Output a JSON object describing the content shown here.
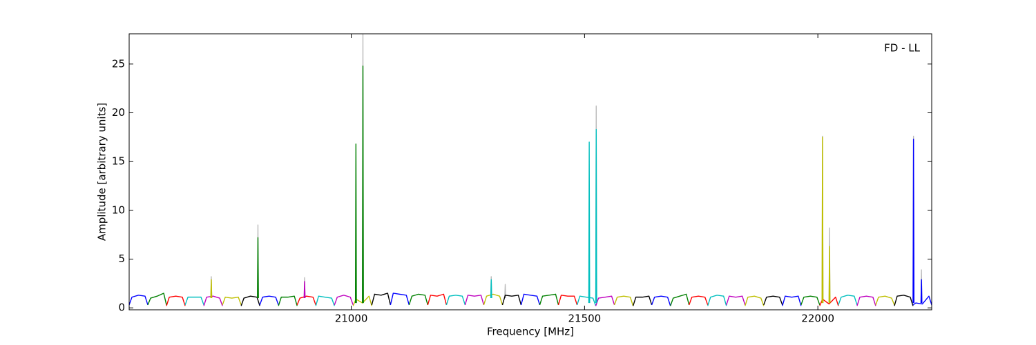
{
  "chart_data": {
    "type": "line",
    "annotation": "FD - LL",
    "xlabel": "Frequency [MHz]",
    "ylabel": "Amplitude [arbitrary units]",
    "xlim": [
      20524,
      22244
    ],
    "ylim": [
      -0.2,
      28.1
    ],
    "xticks": [
      21000,
      21500,
      22000
    ],
    "yticks": [
      0,
      5,
      10,
      15,
      20,
      25
    ],
    "series": [
      {
        "color": "#bbbbbb",
        "x": [
          20699,
          20700,
          20701,
          null,
          20799,
          20800,
          20801,
          null,
          20899,
          20900,
          20901,
          null,
          21024,
          21025,
          21026,
          null,
          21299,
          21300,
          21301,
          null,
          21329,
          21330,
          21331,
          null,
          21524,
          21525,
          21526,
          null,
          22009,
          22010,
          22011,
          null,
          22024,
          22025,
          22026,
          null,
          22204,
          22205,
          22206,
          null,
          22221,
          22222,
          22223
        ],
        "values": [
          1,
          3.2,
          1,
          null,
          1,
          8.5,
          1,
          null,
          1,
          3.1,
          1,
          null,
          0.5,
          28.1,
          0.5,
          null,
          1,
          3.2,
          1,
          null,
          1,
          2.4,
          1,
          null,
          0.5,
          20.7,
          0.5,
          null,
          0.5,
          17.6,
          0.5,
          null,
          0.5,
          8.2,
          0.5,
          null,
          0.5,
          17.6,
          0.5,
          null,
          0.5,
          3.9,
          0.5
        ]
      },
      {
        "color": "#0000ff",
        "x": [
          20524,
          20530,
          20544,
          20558,
          20564
        ],
        "values": [
          0.3,
          1.1,
          1.3,
          1.2,
          0.3
        ]
      },
      {
        "color": "#008000",
        "x": [
          20564,
          20570,
          20584,
          20598,
          20604
        ],
        "values": [
          0.3,
          1.0,
          1.2,
          1.5,
          0.3
        ]
      },
      {
        "color": "#ff0000",
        "x": [
          20604,
          20610,
          20624,
          20638,
          20644
        ],
        "values": [
          0.2,
          1.1,
          1.2,
          1.1,
          0.2
        ]
      },
      {
        "color": "#00bfbf",
        "x": [
          20644,
          20650,
          20664,
          20678,
          20684
        ],
        "values": [
          0.3,
          1.1,
          1.1,
          1.1,
          0.3
        ]
      },
      {
        "color": "#bf00bf",
        "x": [
          20684,
          20690,
          20704,
          20718,
          20724
        ],
        "values": [
          0.2,
          1.1,
          1.2,
          1.0,
          0.2
        ]
      },
      {
        "color": "#bfbf00",
        "x": [
          20724,
          20730,
          20744,
          20758,
          20764
        ],
        "values": [
          0.3,
          1.1,
          1.0,
          1.1,
          0.3
        ]
      },
      {
        "color": "#000000",
        "x": [
          20764,
          20770,
          20784,
          20798,
          20804
        ],
        "values": [
          0.2,
          1.0,
          1.2,
          1.1,
          0.2
        ]
      },
      {
        "color": "#0000ff",
        "x": [
          20804,
          20810,
          20824,
          20838,
          20844
        ],
        "values": [
          0.3,
          1.1,
          1.2,
          1.1,
          0.3
        ]
      },
      {
        "color": "#008000",
        "x": [
          20844,
          20850,
          20864,
          20878,
          20884
        ],
        "values": [
          0.2,
          1.1,
          1.1,
          1.2,
          0.2
        ]
      },
      {
        "color": "#ff0000",
        "x": [
          20884,
          20890,
          20904,
          20918,
          20924
        ],
        "values": [
          0.3,
          1.0,
          1.2,
          1.1,
          0.3
        ]
      },
      {
        "color": "#00bfbf",
        "x": [
          20924,
          20930,
          20944,
          20958,
          20964
        ],
        "values": [
          0.2,
          1.2,
          1.1,
          1.0,
          0.2
        ]
      },
      {
        "color": "#bf00bf",
        "x": [
          20964,
          20970,
          20984,
          20998,
          21004
        ],
        "values": [
          0.3,
          1.1,
          1.3,
          1.1,
          0.3
        ]
      },
      {
        "color": "#bfbf00",
        "x": [
          21004,
          21010,
          21024,
          21038,
          21044
        ],
        "values": [
          0.2,
          0.9,
          0.5,
          1.2,
          0.2
        ]
      },
      {
        "color": "#000000",
        "x": [
          21044,
          21050,
          21064,
          21078,
          21084
        ],
        "values": [
          0.3,
          1.4,
          1.3,
          1.5,
          0.3
        ]
      },
      {
        "color": "#0000ff",
        "x": [
          21084,
          21090,
          21104,
          21118,
          21124
        ],
        "values": [
          0.3,
          1.5,
          1.4,
          1.3,
          0.3
        ]
      },
      {
        "color": "#008000",
        "x": [
          21124,
          21130,
          21144,
          21158,
          21164
        ],
        "values": [
          0.3,
          1.2,
          1.4,
          1.3,
          0.3
        ]
      },
      {
        "color": "#ff0000",
        "x": [
          21164,
          21170,
          21184,
          21198,
          21204
        ],
        "values": [
          0.3,
          1.3,
          1.2,
          1.4,
          0.3
        ]
      },
      {
        "color": "#00bfbf",
        "x": [
          21204,
          21210,
          21224,
          21238,
          21244
        ],
        "values": [
          0.3,
          1.2,
          1.3,
          1.2,
          0.3
        ]
      },
      {
        "color": "#bf00bf",
        "x": [
          21244,
          21250,
          21264,
          21278,
          21284
        ],
        "values": [
          0.3,
          1.3,
          1.2,
          1.3,
          0.3
        ]
      },
      {
        "color": "#bfbf00",
        "x": [
          21284,
          21290,
          21304,
          21318,
          21324
        ],
        "values": [
          0.3,
          1.2,
          1.4,
          1.2,
          0.3
        ]
      },
      {
        "color": "#000000",
        "x": [
          21324,
          21330,
          21344,
          21358,
          21364
        ],
        "values": [
          0.3,
          1.3,
          1.2,
          1.3,
          0.3
        ]
      },
      {
        "color": "#0000ff",
        "x": [
          21364,
          21370,
          21384,
          21398,
          21404
        ],
        "values": [
          0.3,
          1.4,
          1.3,
          1.2,
          0.3
        ]
      },
      {
        "color": "#008000",
        "x": [
          21404,
          21410,
          21424,
          21438,
          21444
        ],
        "values": [
          0.3,
          1.2,
          1.3,
          1.4,
          0.3
        ]
      },
      {
        "color": "#ff0000",
        "x": [
          21444,
          21450,
          21464,
          21478,
          21484
        ],
        "values": [
          0.3,
          1.3,
          1.2,
          1.2,
          0.3
        ]
      },
      {
        "color": "#00bfbf",
        "x": [
          21484,
          21490,
          21504,
          21518,
          21524
        ],
        "values": [
          0.3,
          1.2,
          1.1,
          1.0,
          0.2
        ]
      },
      {
        "color": "#bf00bf",
        "x": [
          21524,
          21530,
          21544,
          21558,
          21564
        ],
        "values": [
          0.2,
          1.0,
          1.1,
          1.2,
          0.3
        ]
      },
      {
        "color": "#bfbf00",
        "x": [
          21564,
          21570,
          21584,
          21598,
          21604
        ],
        "values": [
          0.3,
          1.1,
          1.2,
          1.1,
          0.2
        ]
      },
      {
        "color": "#000000",
        "x": [
          21604,
          21610,
          21624,
          21638,
          21644
        ],
        "values": [
          0.2,
          1.1,
          1.1,
          1.2,
          0.3
        ]
      },
      {
        "color": "#0000ff",
        "x": [
          21644,
          21650,
          21664,
          21678,
          21684
        ],
        "values": [
          0.3,
          1.1,
          1.2,
          1.1,
          0.2
        ]
      },
      {
        "color": "#008000",
        "x": [
          21684,
          21690,
          21704,
          21718,
          21724
        ],
        "values": [
          0.2,
          1.0,
          1.2,
          1.4,
          0.3
        ]
      },
      {
        "color": "#ff0000",
        "x": [
          21724,
          21730,
          21744,
          21758,
          21764
        ],
        "values": [
          0.3,
          1.1,
          1.2,
          1.1,
          0.3
        ]
      },
      {
        "color": "#00bfbf",
        "x": [
          21764,
          21770,
          21784,
          21798,
          21804
        ],
        "values": [
          0.2,
          1.1,
          1.3,
          1.2,
          0.2
        ]
      },
      {
        "color": "#bf00bf",
        "x": [
          21804,
          21810,
          21824,
          21838,
          21844
        ],
        "values": [
          0.3,
          1.2,
          1.1,
          1.2,
          0.3
        ]
      },
      {
        "color": "#bfbf00",
        "x": [
          21844,
          21850,
          21864,
          21878,
          21884
        ],
        "values": [
          0.2,
          1.1,
          1.2,
          1.0,
          0.2
        ]
      },
      {
        "color": "#000000",
        "x": [
          21884,
          21890,
          21904,
          21918,
          21924
        ],
        "values": [
          0.3,
          1.1,
          1.2,
          1.1,
          0.3
        ]
      },
      {
        "color": "#0000ff",
        "x": [
          21924,
          21930,
          21944,
          21958,
          21964
        ],
        "values": [
          0.2,
          1.2,
          1.1,
          1.2,
          0.2
        ]
      },
      {
        "color": "#008000",
        "x": [
          21964,
          21970,
          21984,
          21998,
          22004
        ],
        "values": [
          0.3,
          1.1,
          1.2,
          1.1,
          0.3
        ]
      },
      {
        "color": "#ff0000",
        "x": [
          22004,
          22010,
          22024,
          22038,
          22044
        ],
        "values": [
          0.2,
          0.9,
          0.4,
          1.1,
          0.2
        ]
      },
      {
        "color": "#00bfbf",
        "x": [
          22044,
          22050,
          22064,
          22078,
          22084
        ],
        "values": [
          0.3,
          1.1,
          1.3,
          1.2,
          0.3
        ]
      },
      {
        "color": "#bf00bf",
        "x": [
          22084,
          22090,
          22104,
          22118,
          22124
        ],
        "values": [
          0.2,
          1.1,
          1.2,
          1.1,
          0.2
        ]
      },
      {
        "color": "#bfbf00",
        "x": [
          22124,
          22130,
          22144,
          22158,
          22164
        ],
        "values": [
          0.3,
          1.1,
          1.2,
          1.0,
          0.3
        ]
      },
      {
        "color": "#000000",
        "x": [
          22164,
          22170,
          22184,
          22198,
          22204
        ],
        "values": [
          0.2,
          1.2,
          1.3,
          1.1,
          0.2
        ]
      },
      {
        "color": "#0000ff",
        "x": [
          22204,
          22210,
          22224,
          22238,
          22244
        ],
        "values": [
          0.3,
          0.5,
          0.4,
          1.2,
          0.3
        ]
      },
      {
        "color": "#bfbf00",
        "x": [
          20699,
          20700,
          20701,
          null,
          22009,
          22010,
          22011,
          null,
          22024,
          22025,
          22026
        ],
        "values": [
          1,
          2.9,
          1,
          null,
          0.5,
          17.5,
          0.5,
          null,
          0.5,
          6.3,
          0.5
        ]
      },
      {
        "color": "#008000",
        "x": [
          20799,
          20800,
          20801,
          null,
          21009,
          21010,
          21011,
          null,
          21024,
          21025,
          21026
        ],
        "values": [
          1,
          7.2,
          1,
          null,
          0.5,
          16.8,
          0.5,
          null,
          0.5,
          24.8,
          0.5
        ]
      },
      {
        "color": "#bf00bf",
        "x": [
          20899,
          20900,
          20901
        ],
        "values": [
          1,
          2.7,
          1
        ]
      },
      {
        "color": "#00bfbf",
        "x": [
          21299,
          21300,
          21301,
          null,
          21509,
          21510,
          21511,
          null,
          21524,
          21525,
          21526
        ],
        "values": [
          1,
          2.9,
          1,
          null,
          0.5,
          17.0,
          0.5,
          null,
          0.5,
          18.3,
          0.5
        ]
      },
      {
        "color": "#0000ff",
        "x": [
          22204,
          22205,
          22206,
          null,
          22221,
          22222,
          22223
        ],
        "values": [
          0.5,
          17.3,
          0.5,
          null,
          0.5,
          2.9,
          0.5
        ]
      }
    ]
  }
}
